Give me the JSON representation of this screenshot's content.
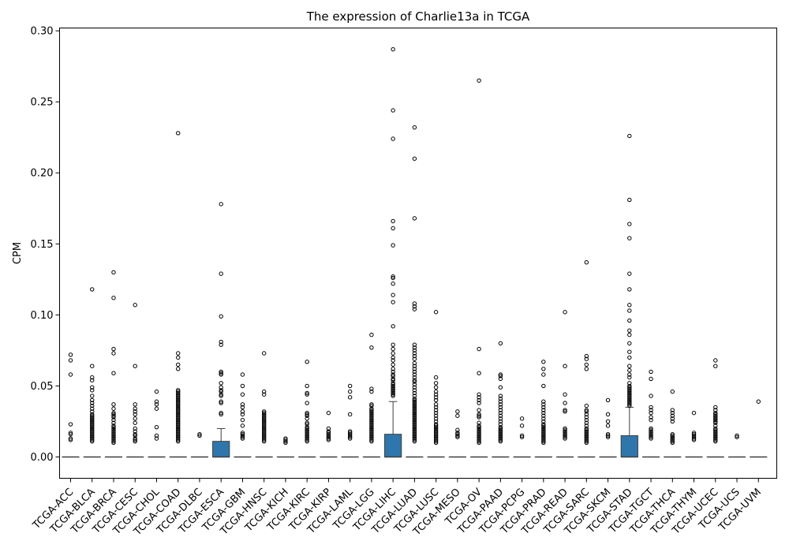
{
  "chart_data": {
    "type": "box",
    "title": "The expression of Charlie13a in TCGA",
    "xlabel": "",
    "ylabel": "CPM",
    "ylim": [
      -0.015,
      0.302
    ],
    "yticks": [
      0.0,
      0.05,
      0.1,
      0.15,
      0.2,
      0.25,
      0.3
    ],
    "ytick_labels": [
      "0.00",
      "0.05",
      "0.10",
      "0.15",
      "0.20",
      "0.25",
      "0.30"
    ],
    "grid": false,
    "legend": "none",
    "box_color": "#2e76ab",
    "categories": [
      "TCGA-ACC",
      "TCGA-BLCA",
      "TCGA-BRCA",
      "TCGA-CESC",
      "TCGA-CHOL",
      "TCGA-COAD",
      "TCGA-DLBC",
      "TCGA-ESCA",
      "TCGA-GBM",
      "TCGA-HNSC",
      "TCGA-KICH",
      "TCGA-KIRC",
      "TCGA-KIRP",
      "TCGA-LAML",
      "TCGA-LGG",
      "TCGA-LIHC",
      "TCGA-LUAD",
      "TCGA-LUSC",
      "TCGA-MESO",
      "TCGA-OV",
      "TCGA-PAAD",
      "TCGA-PCPG",
      "TCGA-PRAD",
      "TCGA-READ",
      "TCGA-SARC",
      "TCGA-SKCM",
      "TCGA-STAD",
      "TCGA-TGCT",
      "TCGA-THCA",
      "TCGA-THYM",
      "TCGA-UCEC",
      "TCGA-UCS",
      "TCGA-UVM"
    ],
    "boxes": [
      {
        "q1": 0,
        "median": 0,
        "q3": 0,
        "whisker_low": 0,
        "whisker_high": 0,
        "outliers": [
          0.072,
          0.068,
          0.058,
          0.023,
          0.017,
          0.016,
          0.013,
          0.012
        ]
      },
      {
        "q1": 0,
        "median": 0,
        "q3": 0,
        "whisker_low": 0,
        "whisker_high": 0,
        "outliers": [
          0.118,
          0.064,
          0.056,
          0.054,
          0.049,
          0.047,
          0.043,
          0.04,
          0.038,
          0.036,
          0.034,
          0.032,
          0.03,
          0.029,
          0.028,
          0.027,
          0.026,
          0.025,
          0.024,
          0.023,
          0.022,
          0.021,
          0.02,
          0.019,
          0.018,
          0.017,
          0.016,
          0.015,
          0.014,
          0.013,
          0.012,
          0.011
        ]
      },
      {
        "q1": 0,
        "median": 0,
        "q3": 0,
        "whisker_low": 0,
        "whisker_high": 0,
        "outliers": [
          0.13,
          0.112,
          0.076,
          0.073,
          0.059,
          0.037,
          0.034,
          0.031,
          0.03,
          0.029,
          0.028,
          0.026,
          0.024,
          0.022,
          0.021,
          0.02,
          0.019,
          0.018,
          0.017,
          0.016,
          0.015,
          0.014,
          0.013,
          0.012,
          0.011,
          0.01
        ]
      },
      {
        "q1": 0,
        "median": 0,
        "q3": 0,
        "whisker_low": 0,
        "whisker_high": 0,
        "outliers": [
          0.107,
          0.064,
          0.037,
          0.034,
          0.032,
          0.03,
          0.027,
          0.024,
          0.02,
          0.018,
          0.016,
          0.015,
          0.013,
          0.012,
          0.011
        ]
      },
      {
        "q1": 0,
        "median": 0,
        "q3": 0,
        "whisker_low": 0,
        "whisker_high": 0,
        "outliers": [
          0.046,
          0.039,
          0.037,
          0.034,
          0.021,
          0.015,
          0.013
        ]
      },
      {
        "q1": 0,
        "median": 0,
        "q3": 0,
        "whisker_low": 0,
        "whisker_high": 0,
        "outliers": [
          0.228,
          0.073,
          0.07,
          0.065,
          0.062,
          0.047,
          0.046,
          0.045,
          0.044,
          0.043,
          0.042,
          0.041,
          0.04,
          0.039,
          0.038,
          0.037,
          0.036,
          0.035,
          0.034,
          0.033,
          0.032,
          0.031,
          0.03,
          0.029,
          0.028,
          0.027,
          0.026,
          0.025,
          0.024,
          0.023,
          0.022,
          0.021,
          0.02,
          0.019,
          0.018,
          0.017,
          0.016,
          0.015,
          0.014,
          0.013,
          0.012,
          0.011
        ]
      },
      {
        "q1": 0,
        "median": 0,
        "q3": 0,
        "whisker_low": 0,
        "whisker_high": 0,
        "outliers": [
          0.016,
          0.015
        ]
      },
      {
        "q1": 0,
        "median": 0,
        "q3": 0.011,
        "whisker_low": 0,
        "whisker_high": 0.02,
        "outliers": [
          0.178,
          0.129,
          0.099,
          0.081,
          0.079,
          0.06,
          0.059,
          0.058,
          0.052,
          0.049,
          0.047,
          0.046,
          0.044,
          0.043,
          0.039,
          0.038,
          0.031,
          0.03
        ]
      },
      {
        "q1": 0,
        "median": 0,
        "q3": 0,
        "whisker_low": 0,
        "whisker_high": 0,
        "outliers": [
          0.058,
          0.05,
          0.044,
          0.037,
          0.035,
          0.032,
          0.03,
          0.026,
          0.022,
          0.017,
          0.016,
          0.015,
          0.014,
          0.013
        ]
      },
      {
        "q1": 0,
        "median": 0,
        "q3": 0,
        "whisker_low": 0,
        "whisker_high": 0,
        "outliers": [
          0.073,
          0.046,
          0.044,
          0.032,
          0.031,
          0.03,
          0.029,
          0.028,
          0.027,
          0.026,
          0.025,
          0.024,
          0.023,
          0.022,
          0.021,
          0.02,
          0.019,
          0.018,
          0.017,
          0.016,
          0.015,
          0.014,
          0.013,
          0.012,
          0.011
        ]
      },
      {
        "q1": 0,
        "median": 0,
        "q3": 0,
        "whisker_low": 0,
        "whisker_high": 0,
        "outliers": [
          0.013,
          0.012,
          0.011,
          0.01
        ]
      },
      {
        "q1": 0,
        "median": 0,
        "q3": 0,
        "whisker_low": 0,
        "whisker_high": 0,
        "outliers": [
          0.067,
          0.05,
          0.045,
          0.044,
          0.038,
          0.031,
          0.03,
          0.029,
          0.027,
          0.024,
          0.023,
          0.021,
          0.02,
          0.019,
          0.018,
          0.017,
          0.016,
          0.015,
          0.014,
          0.013,
          0.012,
          0.011
        ]
      },
      {
        "q1": 0,
        "median": 0,
        "q3": 0,
        "whisker_low": 0,
        "whisker_high": 0,
        "outliers": [
          0.031,
          0.02,
          0.018,
          0.017,
          0.016,
          0.015,
          0.014,
          0.013,
          0.012
        ]
      },
      {
        "q1": 0,
        "median": 0,
        "q3": 0,
        "whisker_low": 0,
        "whisker_high": 0,
        "outliers": [
          0.05,
          0.046,
          0.042,
          0.03,
          0.018,
          0.017,
          0.016,
          0.015,
          0.014,
          0.013
        ]
      },
      {
        "q1": 0,
        "median": 0,
        "q3": 0,
        "whisker_low": 0,
        "whisker_high": 0,
        "outliers": [
          0.086,
          0.077,
          0.048,
          0.046,
          0.037,
          0.036,
          0.034,
          0.033,
          0.032,
          0.031,
          0.03,
          0.029,
          0.028,
          0.027,
          0.026,
          0.025,
          0.024,
          0.023,
          0.022,
          0.021,
          0.02,
          0.019,
          0.018,
          0.017,
          0.016,
          0.015,
          0.014,
          0.013,
          0.012,
          0.011
        ]
      },
      {
        "q1": 0,
        "median": 0,
        "q3": 0.016,
        "whisker_low": 0,
        "whisker_high": 0.039,
        "outliers": [
          0.287,
          0.244,
          0.224,
          0.166,
          0.161,
          0.149,
          0.127,
          0.126,
          0.122,
          0.114,
          0.109,
          0.092,
          0.079,
          0.076,
          0.073,
          0.07,
          0.068,
          0.065,
          0.062,
          0.06,
          0.058,
          0.057,
          0.055,
          0.054,
          0.052,
          0.051,
          0.05,
          0.049,
          0.048,
          0.047,
          0.046,
          0.045,
          0.044,
          0.043
        ]
      },
      {
        "q1": 0,
        "median": 0,
        "q3": 0,
        "whisker_low": 0,
        "whisker_high": 0,
        "outliers": [
          0.232,
          0.21,
          0.168,
          0.108,
          0.106,
          0.104,
          0.079,
          0.077,
          0.075,
          0.073,
          0.071,
          0.069,
          0.066,
          0.064,
          0.062,
          0.06,
          0.058,
          0.056,
          0.054,
          0.053,
          0.051,
          0.049,
          0.047,
          0.045,
          0.043,
          0.041,
          0.04,
          0.039,
          0.038,
          0.037,
          0.036,
          0.035,
          0.034,
          0.033,
          0.032,
          0.031,
          0.03,
          0.029,
          0.028,
          0.027,
          0.026,
          0.025,
          0.024,
          0.023,
          0.022,
          0.021,
          0.02,
          0.019,
          0.018,
          0.017,
          0.016,
          0.015,
          0.014,
          0.013,
          0.012,
          0.011
        ]
      },
      {
        "q1": 0,
        "median": 0,
        "q3": 0,
        "whisker_low": 0,
        "whisker_high": 0,
        "outliers": [
          0.102,
          0.056,
          0.052,
          0.049,
          0.046,
          0.044,
          0.042,
          0.04,
          0.037,
          0.035,
          0.033,
          0.031,
          0.029,
          0.027,
          0.025,
          0.023,
          0.022,
          0.021,
          0.02,
          0.019,
          0.018,
          0.017,
          0.016,
          0.015,
          0.014,
          0.013,
          0.012,
          0.011,
          0.01
        ]
      },
      {
        "q1": 0,
        "median": 0,
        "q3": 0,
        "whisker_low": 0,
        "whisker_high": 0,
        "outliers": [
          0.032,
          0.029,
          0.019,
          0.017,
          0.016,
          0.015,
          0.014
        ]
      },
      {
        "q1": 0,
        "median": 0,
        "q3": 0,
        "whisker_low": 0,
        "whisker_high": 0,
        "outliers": [
          0.265,
          0.076,
          0.059,
          0.044,
          0.042,
          0.04,
          0.038,
          0.033,
          0.03,
          0.029,
          0.028,
          0.024,
          0.022,
          0.021,
          0.02,
          0.019,
          0.018,
          0.017,
          0.016,
          0.015,
          0.014,
          0.013,
          0.012,
          0.011,
          0.01
        ]
      },
      {
        "q1": 0,
        "median": 0,
        "q3": 0,
        "whisker_low": 0,
        "whisker_high": 0,
        "outliers": [
          0.08,
          0.058,
          0.057,
          0.055,
          0.049,
          0.043,
          0.041,
          0.039,
          0.037,
          0.035,
          0.033,
          0.031,
          0.029,
          0.027,
          0.025,
          0.023,
          0.021,
          0.02,
          0.019,
          0.018,
          0.017,
          0.016,
          0.015,
          0.014,
          0.013,
          0.012,
          0.011
        ]
      },
      {
        "q1": 0,
        "median": 0,
        "q3": 0,
        "whisker_low": 0,
        "whisker_high": 0,
        "outliers": [
          0.027,
          0.022,
          0.015,
          0.014
        ]
      },
      {
        "q1": 0,
        "median": 0,
        "q3": 0,
        "whisker_low": 0,
        "whisker_high": 0,
        "outliers": [
          0.067,
          0.062,
          0.058,
          0.05,
          0.039,
          0.037,
          0.035,
          0.033,
          0.031,
          0.029,
          0.027,
          0.025,
          0.023,
          0.022,
          0.021,
          0.02,
          0.019,
          0.018,
          0.017,
          0.016,
          0.015,
          0.014,
          0.013,
          0.012,
          0.011,
          0.01
        ]
      },
      {
        "q1": 0,
        "median": 0,
        "q3": 0,
        "whisker_low": 0,
        "whisker_high": 0,
        "outliers": [
          0.102,
          0.064,
          0.044,
          0.038,
          0.033,
          0.032,
          0.02,
          0.019,
          0.018,
          0.017,
          0.016,
          0.015,
          0.014,
          0.013
        ]
      },
      {
        "q1": 0,
        "median": 0,
        "q3": 0,
        "whisker_low": 0,
        "whisker_high": 0,
        "outliers": [
          0.137,
          0.071,
          0.069,
          0.065,
          0.062,
          0.036,
          0.033,
          0.032,
          0.03,
          0.028,
          0.026,
          0.024,
          0.022,
          0.02,
          0.019,
          0.018,
          0.017,
          0.016,
          0.015,
          0.014,
          0.013,
          0.012,
          0.011,
          0.01
        ]
      },
      {
        "q1": 0,
        "median": 0,
        "q3": 0,
        "whisker_low": 0,
        "whisker_high": 0,
        "outliers": [
          0.04,
          0.03,
          0.025,
          0.022,
          0.016,
          0.015,
          0.014
        ]
      },
      {
        "q1": 0,
        "median": 0,
        "q3": 0.015,
        "whisker_low": 0,
        "whisker_high": 0.035,
        "outliers": [
          0.226,
          0.181,
          0.164,
          0.154,
          0.129,
          0.118,
          0.107,
          0.103,
          0.096,
          0.089,
          0.086,
          0.08,
          0.074,
          0.07,
          0.064,
          0.061,
          0.058,
          0.056,
          0.052,
          0.05,
          0.049,
          0.048,
          0.047,
          0.046,
          0.045,
          0.044,
          0.043,
          0.042,
          0.041,
          0.04,
          0.039,
          0.038,
          0.037,
          0.036
        ]
      },
      {
        "q1": 0,
        "median": 0,
        "q3": 0,
        "whisker_low": 0,
        "whisker_high": 0,
        "outliers": [
          0.06,
          0.055,
          0.043,
          0.035,
          0.033,
          0.031,
          0.028,
          0.026,
          0.02,
          0.019,
          0.018,
          0.017,
          0.016,
          0.015,
          0.014,
          0.013
        ]
      },
      {
        "q1": 0,
        "median": 0,
        "q3": 0,
        "whisker_low": 0,
        "whisker_high": 0,
        "outliers": [
          0.046,
          0.033,
          0.031,
          0.029,
          0.027,
          0.025,
          0.016,
          0.015,
          0.014,
          0.013,
          0.012,
          0.011,
          0.01
        ]
      },
      {
        "q1": 0,
        "median": 0,
        "q3": 0,
        "whisker_low": 0,
        "whisker_high": 0,
        "outliers": [
          0.031,
          0.017,
          0.016,
          0.015,
          0.014,
          0.013,
          0.012
        ]
      },
      {
        "q1": 0,
        "median": 0,
        "q3": 0,
        "whisker_low": 0,
        "whisker_high": 0,
        "outliers": [
          0.068,
          0.064,
          0.035,
          0.033,
          0.031,
          0.03,
          0.029,
          0.028,
          0.027,
          0.026,
          0.025,
          0.024,
          0.022,
          0.02,
          0.019,
          0.018,
          0.017,
          0.016,
          0.015,
          0.014,
          0.013,
          0.012,
          0.011
        ]
      },
      {
        "q1": 0,
        "median": 0,
        "q3": 0,
        "whisker_low": 0,
        "whisker_high": 0,
        "outliers": [
          0.015,
          0.014
        ]
      },
      {
        "q1": 0,
        "median": 0,
        "q3": 0,
        "whisker_low": 0,
        "whisker_high": 0,
        "outliers": [
          0.039
        ]
      }
    ]
  }
}
